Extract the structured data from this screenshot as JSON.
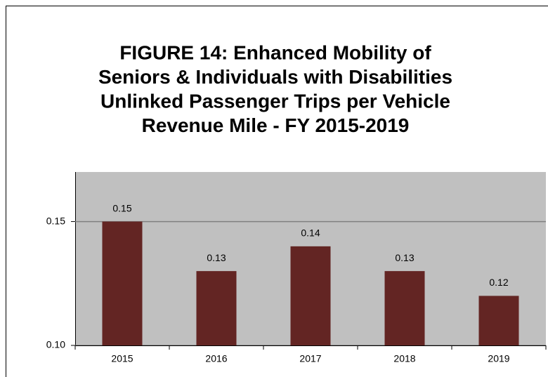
{
  "chart_data": {
    "type": "bar",
    "title": [
      "FIGURE 14: Enhanced Mobility of",
      "Seniors & Individuals with Disabilities",
      "Unlinked Passenger Trips per Vehicle",
      "Revenue Mile - FY 2015-2019"
    ],
    "categories": [
      "2015",
      "2016",
      "2017",
      "2018",
      "2019"
    ],
    "values": [
      0.15,
      0.13,
      0.14,
      0.13,
      0.12
    ],
    "color": "#632523",
    "plot_background": "#c0c0c0",
    "ylim": [
      0.1,
      0.17
    ],
    "yticks": [
      {
        "value": 0.1,
        "label": "0.10"
      },
      0.15
    ],
    "grid": true
  }
}
